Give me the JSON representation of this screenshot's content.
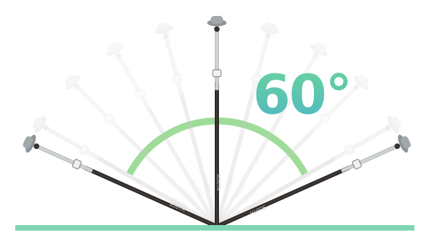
{
  "angle_label": "60°",
  "pole_brand": "SOUTH",
  "colors": {
    "arc": "#9fdc9a",
    "ground": "#7fd6b4",
    "text_gradient_top": "#6ad39d",
    "text_gradient_bottom": "#4fb6c4",
    "pole_dark": "#2f2a27",
    "pole_light": "#cfd2d3",
    "antenna": "#8e9498"
  },
  "icons": {
    "antenna": "gnss-antenna-icon",
    "bubble": "bubble-level-icon"
  }
}
